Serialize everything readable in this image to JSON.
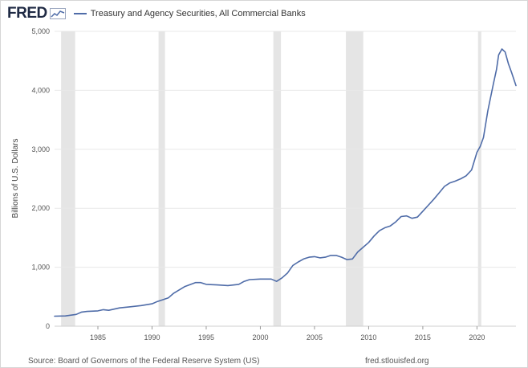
{
  "brand": {
    "logo_text": "FRED"
  },
  "footer": {
    "source": "Source: Board of Governors of the Federal Reserve System (US)",
    "site": "fred.stlouisfed.org"
  },
  "colors": {
    "line": "#4f6ca8",
    "recession": "#e5e5e5",
    "grid": "#e8e8e8"
  },
  "chart_data": {
    "type": "line",
    "title": "",
    "xlabel": "",
    "ylabel": "Billions of U.S. Dollars",
    "xlim": [
      1981.0,
      2023.6
    ],
    "ylim": [
      0,
      5000
    ],
    "yticks": [
      0,
      1000,
      2000,
      3000,
      4000,
      5000
    ],
    "ytick_labels": [
      "0",
      "1,000",
      "2,000",
      "3,000",
      "4,000",
      "5,000"
    ],
    "xticks": [
      1985,
      1990,
      1995,
      2000,
      2005,
      2010,
      2015,
      2020
    ],
    "xtick_labels": [
      "1985",
      "1990",
      "1995",
      "2000",
      "2005",
      "2010",
      "2015",
      "2020"
    ],
    "grid": true,
    "legend": "top-left",
    "recessions": [
      [
        1981.6,
        1982.9
      ],
      [
        1990.6,
        1991.2
      ],
      [
        2001.2,
        2001.9
      ],
      [
        2007.9,
        2009.5
      ],
      [
        2020.1,
        2020.4
      ]
    ],
    "series": [
      {
        "name": "Treasury and Agency Securities, All Commercial Banks",
        "x": [
          1981.0,
          1982.0,
          1983.0,
          1983.5,
          1984.0,
          1985.0,
          1985.5,
          1986.0,
          1987.0,
          1988.0,
          1989.0,
          1990.0,
          1990.5,
          1991.0,
          1991.5,
          1992.0,
          1993.0,
          1994.0,
          1994.5,
          1995.0,
          1996.0,
          1997.0,
          1998.0,
          1998.5,
          1999.0,
          2000.0,
          2001.0,
          2001.5,
          2002.0,
          2002.5,
          2003.0,
          2003.5,
          2004.0,
          2004.5,
          2005.0,
          2005.5,
          2006.0,
          2006.5,
          2007.0,
          2007.5,
          2008.0,
          2008.5,
          2009.0,
          2009.5,
          2010.0,
          2010.5,
          2011.0,
          2011.5,
          2012.0,
          2012.5,
          2013.0,
          2013.5,
          2014.0,
          2014.5,
          2015.0,
          2015.5,
          2016.0,
          2016.5,
          2017.0,
          2017.5,
          2018.0,
          2018.5,
          2019.0,
          2019.5,
          2020.0,
          2020.3,
          2020.6,
          2021.0,
          2021.5,
          2021.8,
          2022.0,
          2022.3,
          2022.6,
          2022.9,
          2023.2,
          2023.6
        ],
        "values": [
          170,
          175,
          200,
          240,
          250,
          260,
          280,
          270,
          310,
          330,
          350,
          380,
          420,
          450,
          480,
          560,
          670,
          740,
          740,
          710,
          700,
          690,
          710,
          760,
          790,
          800,
          800,
          760,
          820,
          900,
          1030,
          1090,
          1140,
          1170,
          1180,
          1160,
          1170,
          1200,
          1200,
          1170,
          1130,
          1140,
          1260,
          1340,
          1420,
          1530,
          1620,
          1670,
          1700,
          1770,
          1860,
          1870,
          1830,
          1850,
          1950,
          2050,
          2150,
          2260,
          2370,
          2430,
          2460,
          2500,
          2550,
          2650,
          2950,
          3050,
          3200,
          3650,
          4100,
          4350,
          4600,
          4700,
          4650,
          4450,
          4300,
          4080
        ]
      }
    ]
  }
}
